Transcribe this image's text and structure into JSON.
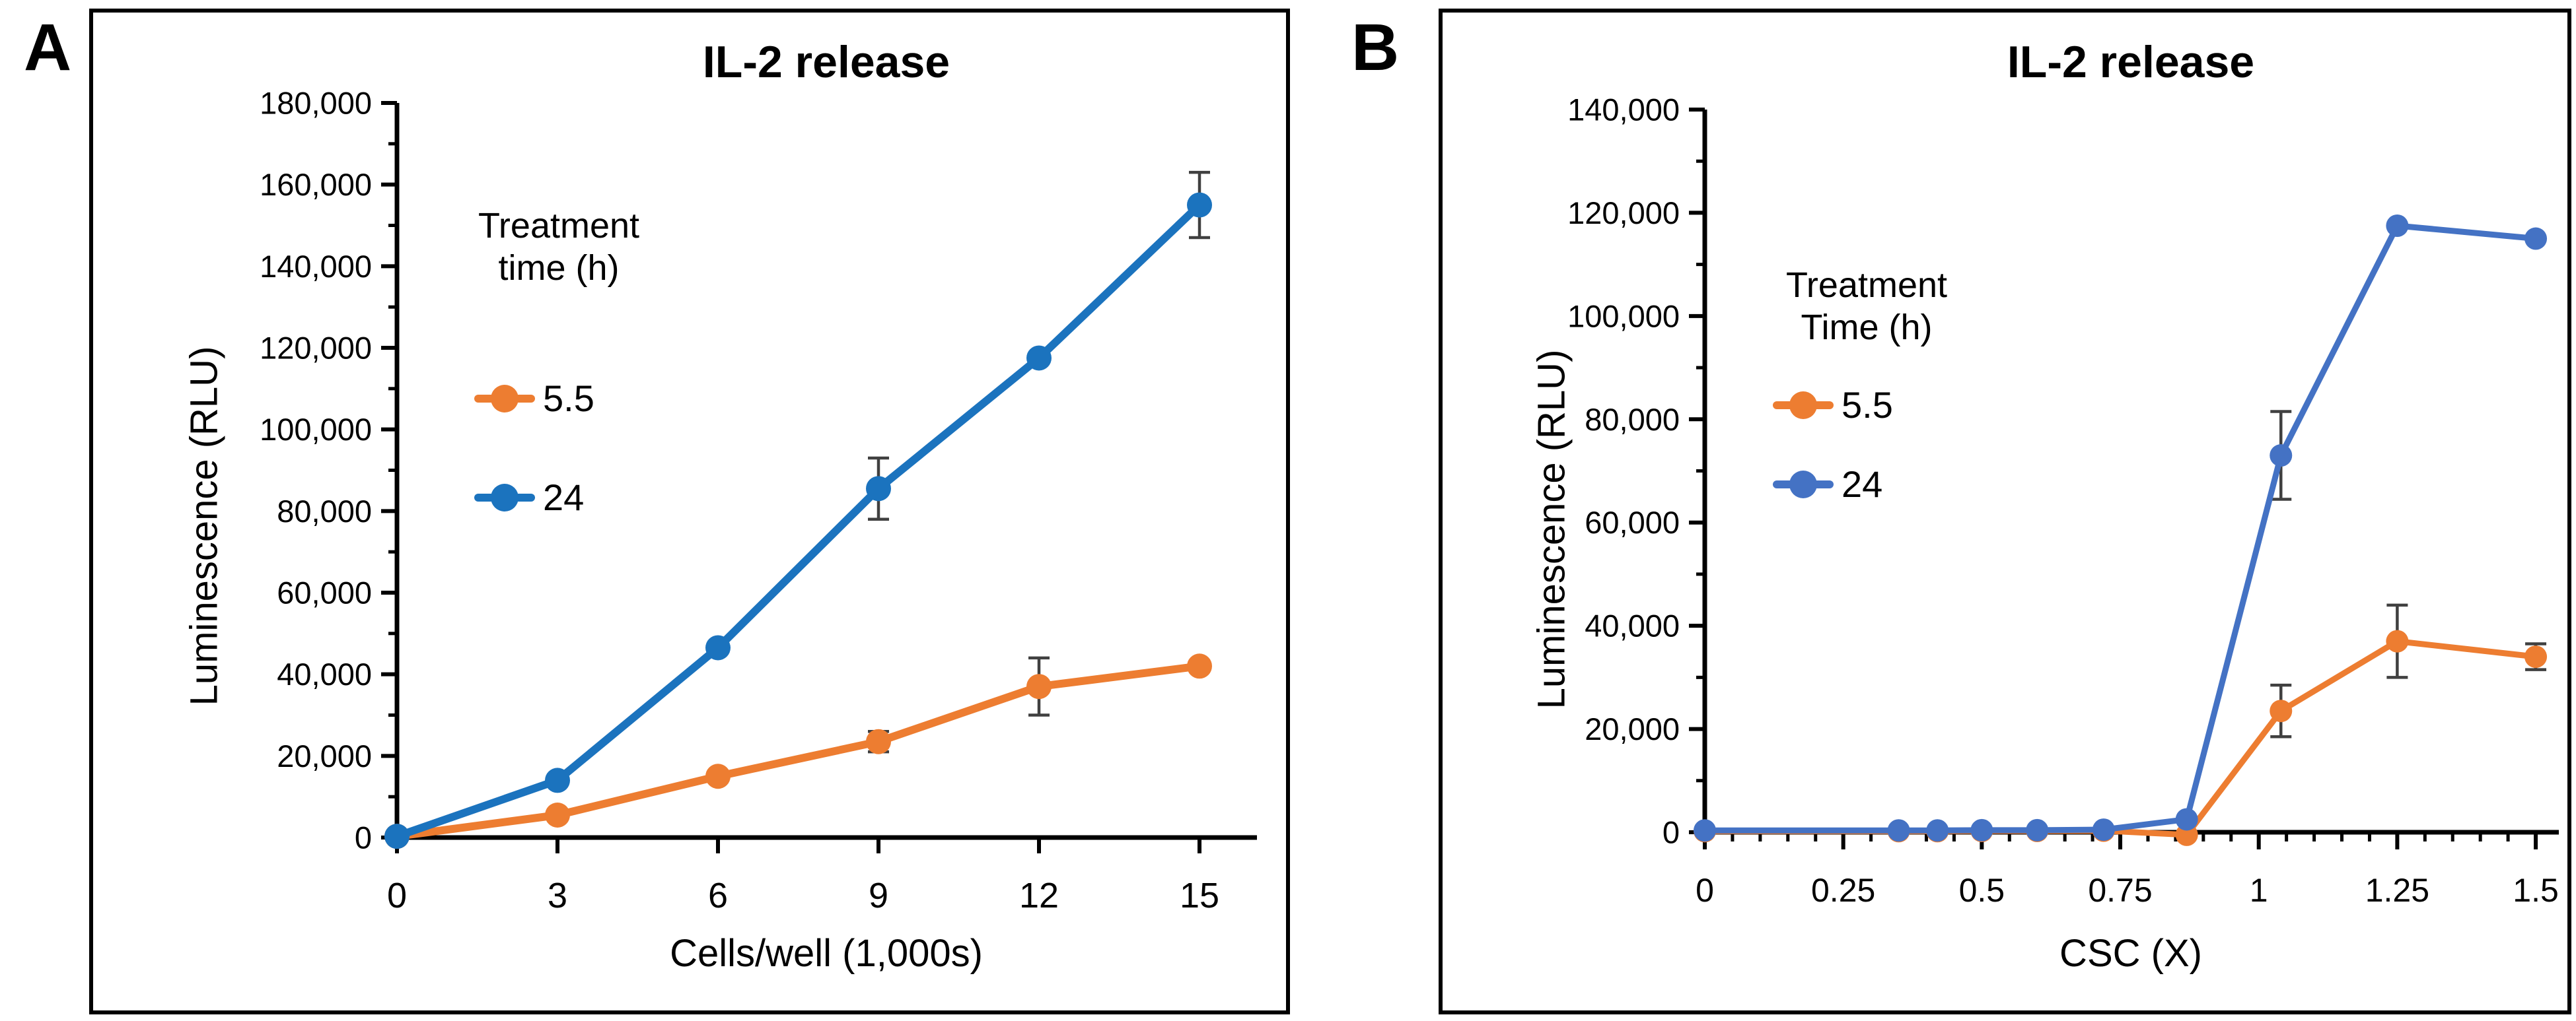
{
  "panel_labels": [
    "A",
    "B"
  ],
  "chart_data": [
    {
      "type": "line",
      "title": "IL-2 release",
      "xlabel": "Cells/well (1,000s)",
      "ylabel": "Luminescence (RLU)",
      "legend": {
        "position": "inside-left",
        "title_lines": [
          "Treatment",
          "time (h)"
        ],
        "entries": [
          {
            "label": "5.5",
            "color": "#ED7D31"
          },
          {
            "label": "24",
            "color": "#1B73BE"
          }
        ]
      },
      "x_axis": {
        "ticks": [
          0,
          3,
          6,
          9,
          12,
          15
        ],
        "tick_labels": [
          "0",
          "3",
          "6",
          "9",
          "12",
          "15"
        ],
        "minor_step": null
      },
      "y_axis": {
        "min": 0,
        "max": 180000,
        "major_step": 20000,
        "minor_step": 10000,
        "tick_labels": [
          "0",
          "20,000",
          "40,000",
          "60,000",
          "80,000",
          "100,000",
          "120,000",
          "140,000",
          "160,000",
          "180,000"
        ]
      },
      "grid": false,
      "series": [
        {
          "name": "5.5",
          "color": "#ED7D31",
          "x": [
            0,
            3,
            6,
            9,
            12,
            15
          ],
          "y": [
            300,
            5500,
            15000,
            23500,
            37000,
            42000
          ],
          "err": [
            0,
            0,
            0,
            2500,
            7000,
            0
          ]
        },
        {
          "name": "24",
          "color": "#1B73BE",
          "x": [
            0,
            3,
            6,
            9,
            12,
            15
          ],
          "y": [
            300,
            14000,
            46500,
            85500,
            117500,
            155000
          ],
          "err": [
            0,
            0,
            0,
            7500,
            0,
            8000
          ]
        }
      ]
    },
    {
      "type": "line",
      "title": "IL-2 release",
      "xlabel": "CSC (X)",
      "ylabel": "Luminescence (RLU)",
      "legend": {
        "position": "inside-left",
        "title_lines": [
          "Treatment",
          "Time (h)"
        ],
        "entries": [
          {
            "label": "5.5",
            "color": "#ED7D31"
          },
          {
            "label": "24",
            "color": "#4472C4"
          }
        ]
      },
      "x_axis": {
        "ticks": [
          0,
          0.25,
          0.5,
          0.75,
          1,
          1.25,
          1.5
        ],
        "tick_labels": [
          "0",
          "0.25",
          "0.5",
          "0.75",
          "1",
          "1.25",
          "1.5"
        ],
        "minor_step": 0.05
      },
      "y_axis": {
        "min": 0,
        "max": 140000,
        "major_step": 20000,
        "minor_step": 10000,
        "tick_labels": [
          "0",
          "20,000",
          "40,000",
          "60,000",
          "80,000",
          "100,000",
          "120,000",
          "140,000"
        ]
      },
      "grid": false,
      "series": [
        {
          "name": "5.5",
          "color": "#ED7D31",
          "x": [
            0,
            0.35,
            0.42,
            0.5,
            0.6,
            0.72,
            0.87,
            1.04,
            1.25,
            1.5
          ],
          "y": [
            200,
            200,
            200,
            250,
            250,
            300,
            -500,
            23500,
            37000,
            34000
          ],
          "err": [
            0,
            0,
            0,
            0,
            0,
            0,
            0,
            5000,
            7000,
            2500
          ]
        },
        {
          "name": "24",
          "color": "#4472C4",
          "x": [
            0,
            0.35,
            0.42,
            0.5,
            0.6,
            0.72,
            0.87,
            1.04,
            1.25,
            1.5
          ],
          "y": [
            350,
            350,
            350,
            400,
            400,
            500,
            2500,
            73000,
            117500,
            115000
          ],
          "err": [
            0,
            0,
            0,
            0,
            0,
            0,
            0,
            8500,
            0,
            0
          ]
        }
      ]
    }
  ]
}
